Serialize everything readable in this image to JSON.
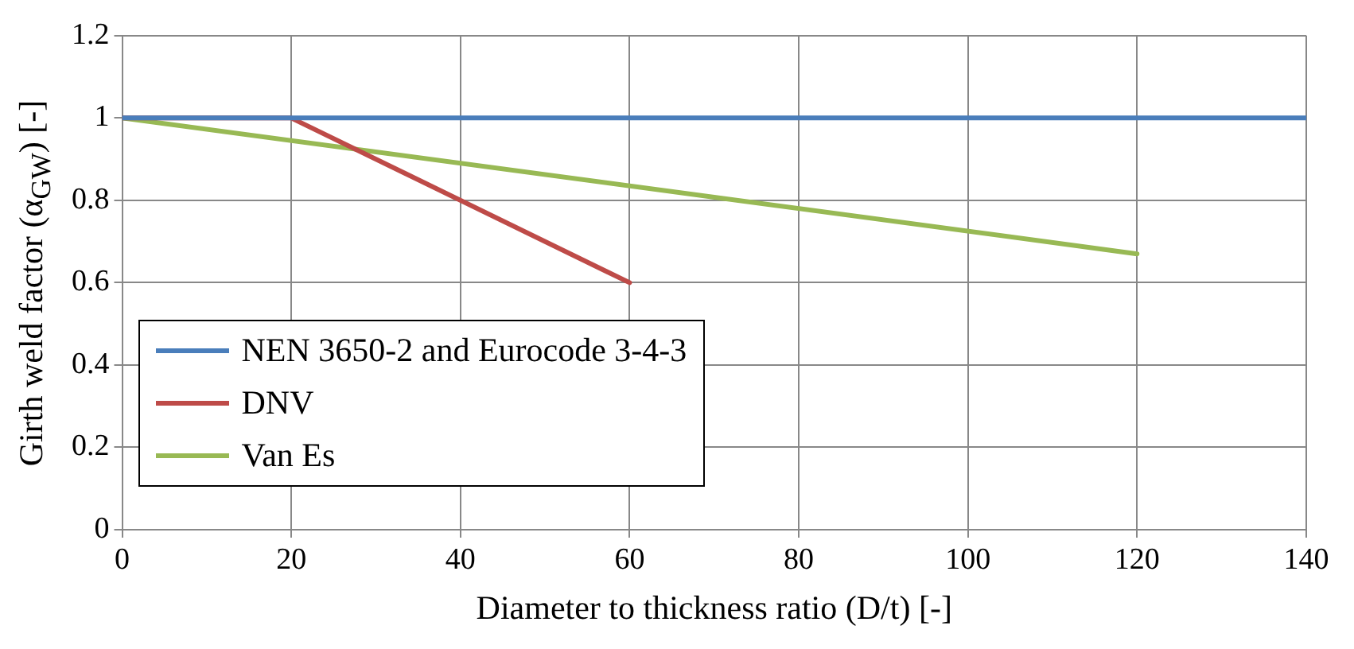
{
  "chart_data": {
    "type": "line",
    "xlabel": "Diameter to thickness ratio (D/t) [-]",
    "ylabel": "Girth weld factor (α$_{GW}$) [-]",
    "series": [
      {
        "name": "NEN 3650-2 and Eurocode 3-4-3",
        "color": "#4a7ebb",
        "x": [
          0,
          140
        ],
        "values": [
          1,
          1
        ]
      },
      {
        "name": "DNV",
        "color": "#be4b48",
        "x": [
          0,
          20,
          60
        ],
        "values": [
          1,
          1,
          0.6
        ]
      },
      {
        "name": "Van Es",
        "color": "#98b954",
        "x": [
          0,
          120
        ],
        "values": [
          1,
          0.67
        ]
      }
    ],
    "xlim": [
      0,
      140
    ],
    "xticks": [
      0,
      20,
      40,
      60,
      80,
      100,
      120,
      140
    ],
    "ylim": [
      0,
      1.2
    ],
    "yticks": [
      0,
      0.2,
      0.4,
      0.6,
      0.8,
      1,
      1.2
    ],
    "grid": true,
    "legend": "bottom left",
    "marker": "none",
    "line_style": "solid"
  }
}
